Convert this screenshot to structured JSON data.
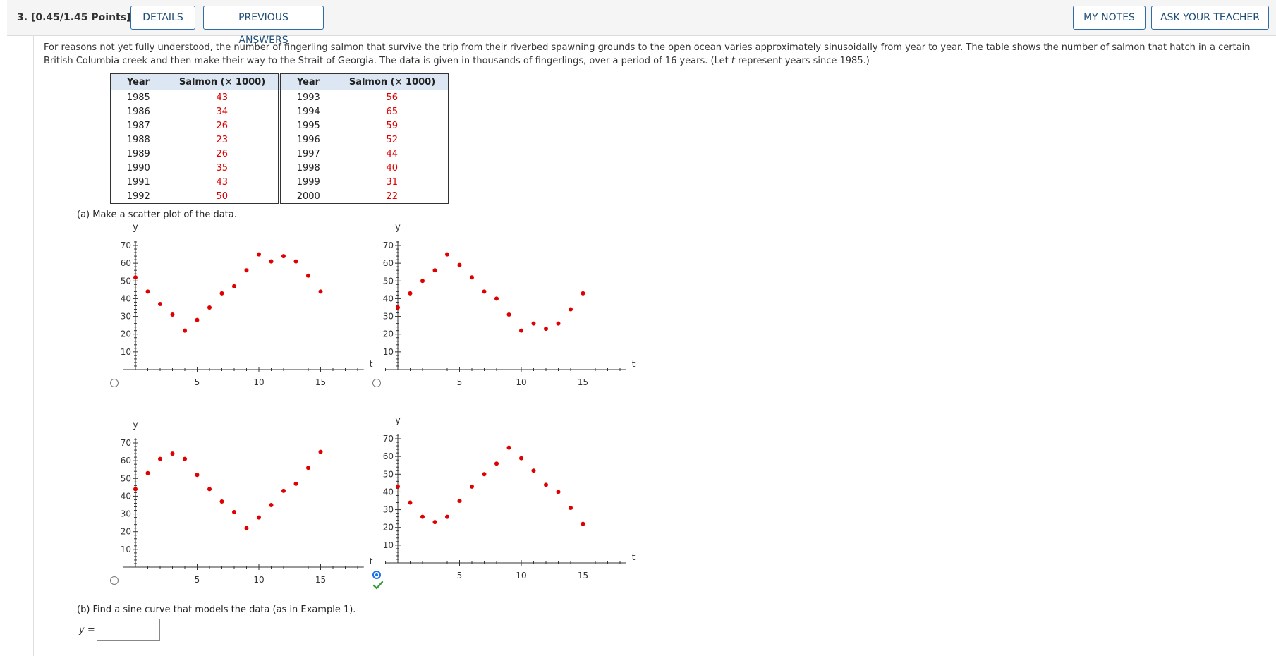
{
  "question": {
    "number": "3.",
    "points": "[0.45/1.45 Points]",
    "buttons": {
      "details": "DETAILS",
      "previous_answers": "PREVIOUS ANSWERS",
      "my_notes": "MY NOTES",
      "ask_teacher": "ASK YOUR TEACHER"
    }
  },
  "intro": {
    "part1": "For reasons not yet fully understood, the number of fingerling salmon that survive the trip from their riverbed spawning grounds to the open ocean varies approximately sinusoidally from year to year. The table shows the number of salmon that hatch in a certain British Columbia creek and then make their way to the Strait of Georgia. The data is given in thousands of fingerlings, over a period of 16 years. (Let ",
    "var": "t",
    "part2": " represent years since 1985.)"
  },
  "table": {
    "headers": [
      "Year",
      "Salmon (× 1000)",
      "Year",
      "Salmon (× 1000)"
    ],
    "rows": [
      [
        "1985",
        "43",
        "1993",
        "56"
      ],
      [
        "1986",
        "34",
        "1994",
        "65"
      ],
      [
        "1987",
        "26",
        "1995",
        "59"
      ],
      [
        "1988",
        "23",
        "1996",
        "52"
      ],
      [
        "1989",
        "26",
        "1997",
        "44"
      ],
      [
        "1990",
        "35",
        "1998",
        "40"
      ],
      [
        "1991",
        "43",
        "1999",
        "31"
      ],
      [
        "1992",
        "50",
        "2000",
        "22"
      ]
    ]
  },
  "part_a": {
    "label": "(a) Make a scatter plot of the data."
  },
  "chart_data": [
    {
      "type": "scatter",
      "xlabel": "t",
      "ylabel": "y",
      "xticks": [
        5,
        10,
        15
      ],
      "yticks": [
        10,
        20,
        30,
        40,
        50,
        60,
        70
      ],
      "xlim": [
        -1,
        18.5
      ],
      "ylim": [
        0,
        72
      ],
      "series": [
        {
          "x": [
            0,
            1,
            2,
            3,
            4,
            5,
            6,
            7,
            8,
            9,
            10,
            11,
            12,
            13,
            14,
            15
          ],
          "y": [
            52,
            44,
            37,
            31,
            22,
            28,
            35,
            43,
            47,
            56,
            65,
            61,
            64,
            61,
            53,
            44
          ]
        }
      ],
      "selected": false
    },
    {
      "type": "scatter",
      "xlabel": "t",
      "ylabel": "y",
      "xticks": [
        5,
        10,
        15
      ],
      "yticks": [
        10,
        20,
        30,
        40,
        50,
        60,
        70
      ],
      "xlim": [
        -1,
        18.5
      ],
      "ylim": [
        0,
        72
      ],
      "series": [
        {
          "x": [
            0,
            1,
            2,
            3,
            4,
            5,
            6,
            7,
            8,
            9,
            10,
            11,
            12,
            13,
            14,
            15
          ],
          "y": [
            35,
            43,
            50,
            56,
            65,
            59,
            52,
            44,
            40,
            31,
            22,
            26,
            23,
            26,
            34,
            43
          ]
        }
      ],
      "selected": false
    },
    {
      "type": "scatter",
      "xlabel": "t",
      "ylabel": "y",
      "xticks": [
        5,
        10,
        15
      ],
      "yticks": [
        10,
        20,
        30,
        40,
        50,
        60,
        70
      ],
      "xlim": [
        -1,
        18.5
      ],
      "ylim": [
        0,
        72
      ],
      "series": [
        {
          "x": [
            0,
            1,
            2,
            3,
            4,
            5,
            6,
            7,
            8,
            9,
            10,
            11,
            12,
            13,
            14,
            15
          ],
          "y": [
            44,
            53,
            61,
            64,
            61,
            52,
            44,
            37,
            31,
            22,
            28,
            35,
            43,
            47,
            56,
            65
          ]
        }
      ],
      "selected": false
    },
    {
      "type": "scatter",
      "xlabel": "t",
      "ylabel": "y",
      "xticks": [
        5,
        10,
        15
      ],
      "yticks": [
        10,
        20,
        30,
        40,
        50,
        60,
        70
      ],
      "xlim": [
        -1,
        18.5
      ],
      "ylim": [
        0,
        72
      ],
      "series": [
        {
          "x": [
            0,
            1,
            2,
            3,
            4,
            5,
            6,
            7,
            8,
            9,
            10,
            11,
            12,
            13,
            14,
            15
          ],
          "y": [
            43,
            34,
            26,
            23,
            26,
            35,
            43,
            50,
            56,
            65,
            59,
            52,
            44,
            40,
            31,
            22
          ]
        }
      ],
      "selected": true
    }
  ],
  "part_b": {
    "label": "(b) Find a sine curve that models the data (as in Example 1).",
    "y_label": "y =",
    "answer_value": ""
  },
  "colors": {
    "point": "#e00000",
    "axis": "#333333",
    "accent": "#1f4e79",
    "check": "#3a9a3a"
  },
  "icons": {
    "correct": "check-icon"
  }
}
